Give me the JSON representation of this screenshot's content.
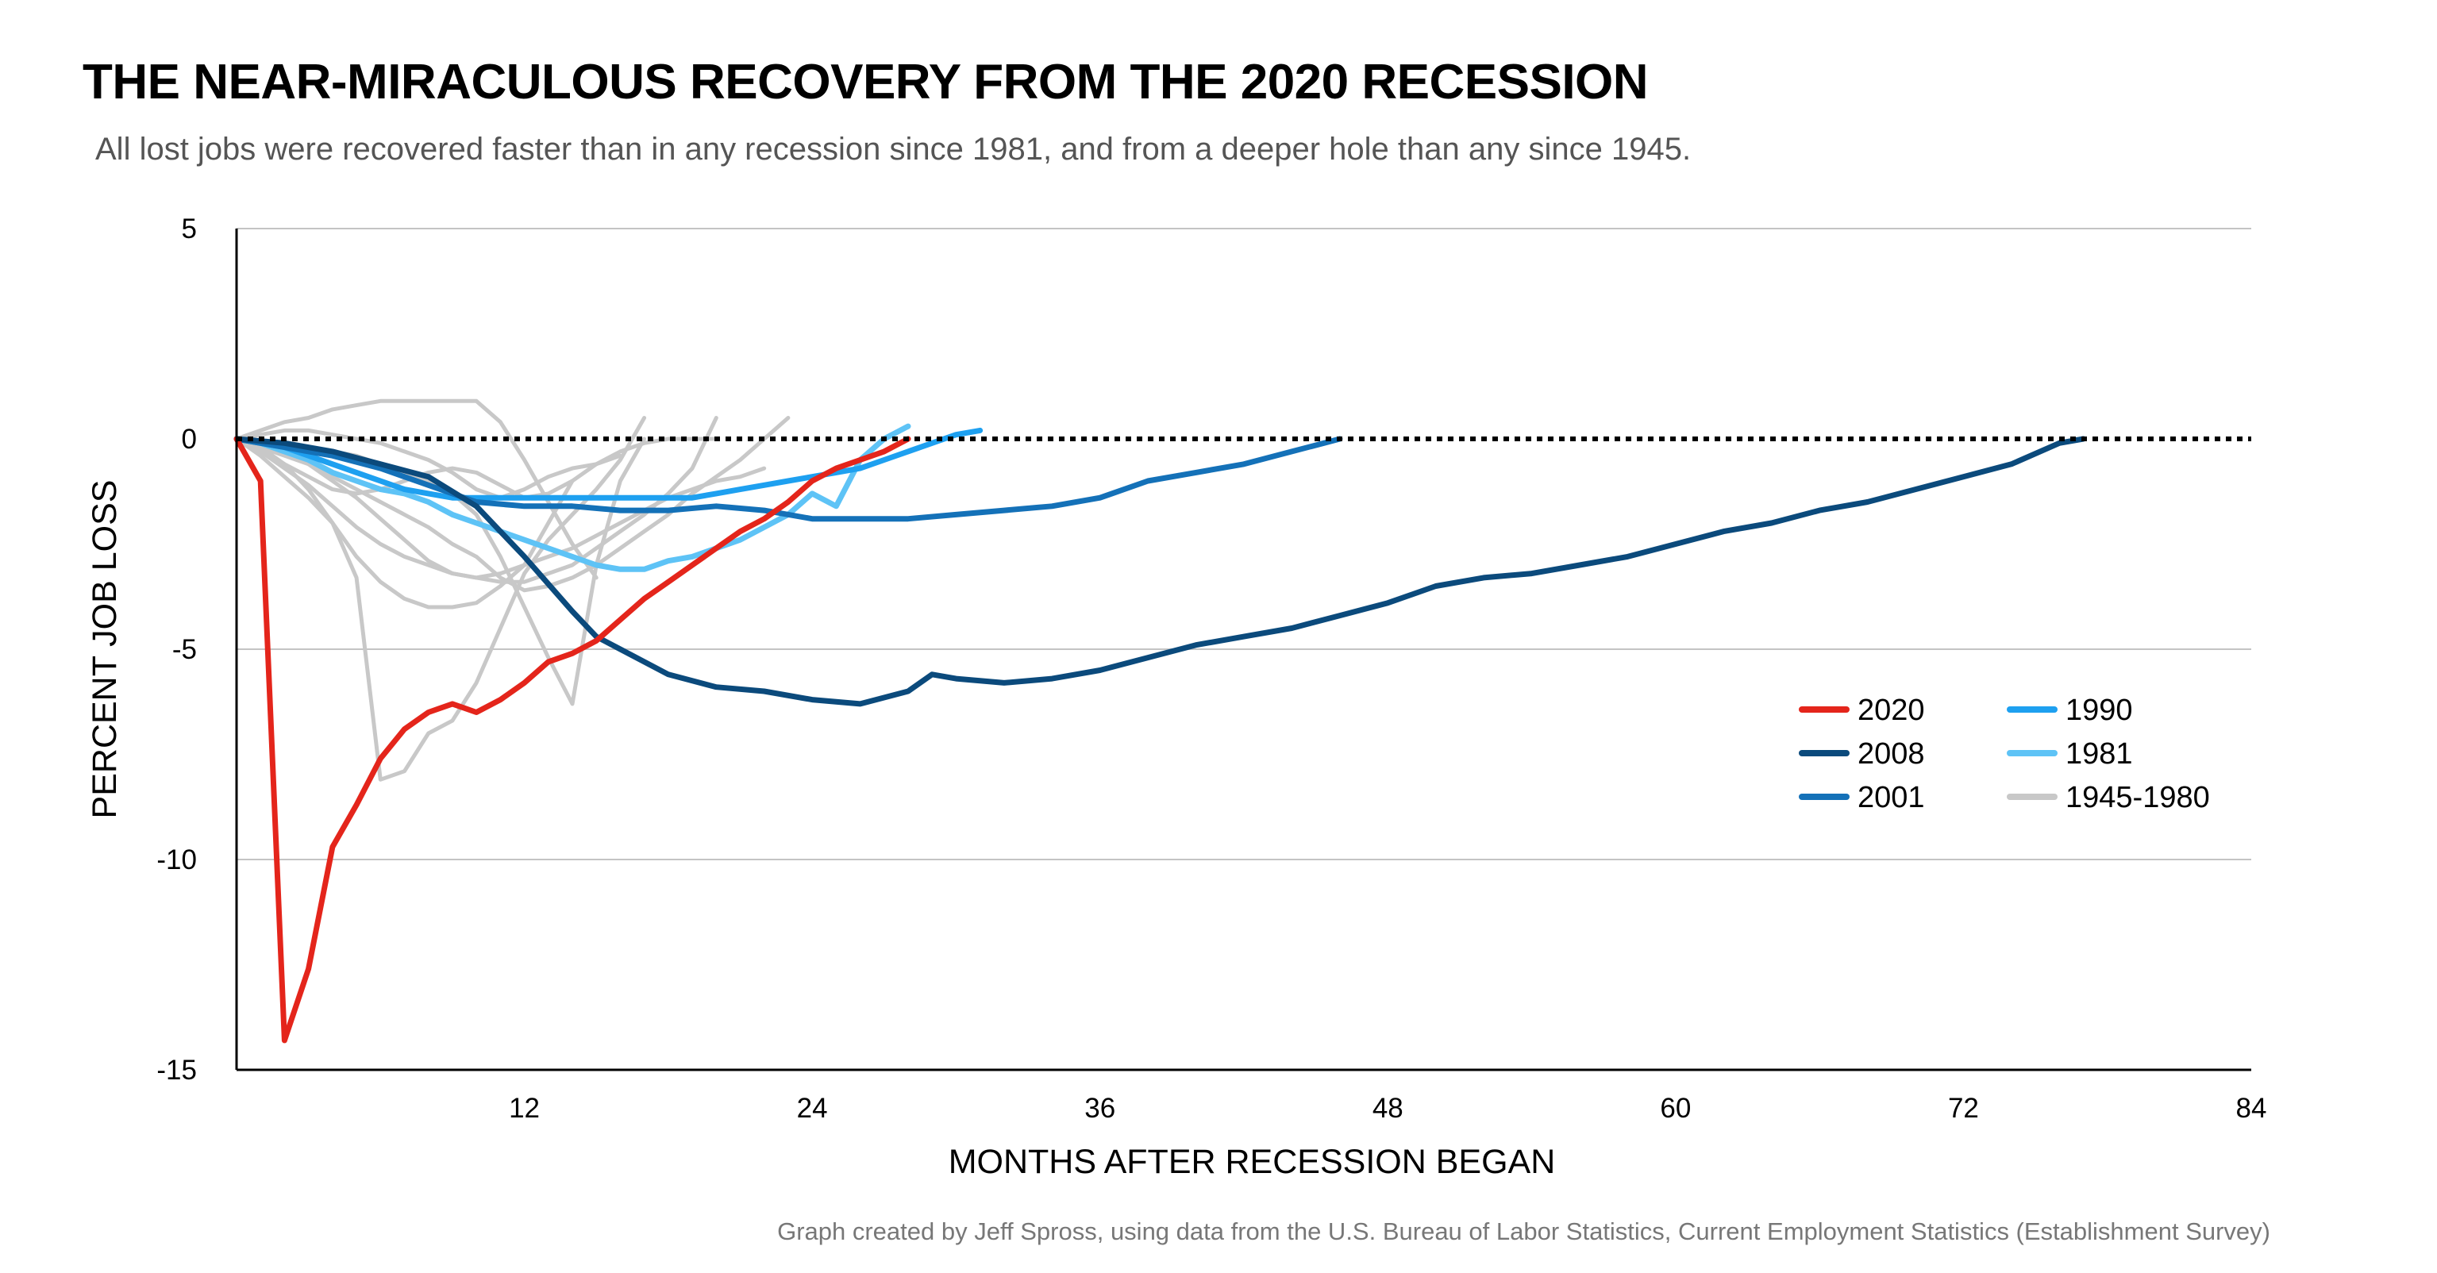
{
  "header": {
    "title": "THE NEAR-MIRACULOUS RECOVERY FROM THE 2020 RECESSION",
    "subtitle": "All lost jobs were recovered faster than in any recession since 1981, and from a deeper hole than any since 1945."
  },
  "footer": {
    "credit": "Graph created by Jeff Spross, using data from the U.S. Bureau of Labor Statistics, Current Employment Statistics (Establishment Survey)"
  },
  "chart_data": {
    "type": "line",
    "title": "THE NEAR-MIRACULOUS RECOVERY FROM THE 2020 RECESSION",
    "subtitle": "All lost jobs were recovered faster than in any recession since 1981, and from a deeper hole than any since 1945.",
    "xlabel": "MONTHS AFTER RECESSION BEGAN",
    "ylabel": "PERCENT JOB LOSS",
    "xlim": [
      0,
      84
    ],
    "ylim": [
      -15,
      5
    ],
    "xticks": [
      12,
      24,
      36,
      48,
      60,
      72,
      84
    ],
    "yticks": [
      5,
      0,
      -5,
      -10,
      -15
    ],
    "grid": "horizontal",
    "reference_line": {
      "y": 0,
      "style": "dotted"
    },
    "legend": {
      "placement": "right",
      "entries": [
        {
          "label": "2020",
          "color": "#e4251b"
        },
        {
          "label": "2008",
          "color": "#0b4a7c"
        },
        {
          "label": "2001",
          "color": "#1471b8"
        },
        {
          "label": "1990",
          "color": "#1ea0f0"
        },
        {
          "label": "1981",
          "color": "#5ec3f6"
        },
        {
          "label": "1945-1980",
          "color": "#c8c8c8"
        }
      ]
    },
    "series": [
      {
        "name": "1945-1980",
        "color": "#c8c8c8",
        "group": "background",
        "x": [
          0,
          1,
          2,
          3,
          4,
          5,
          6,
          7,
          8,
          9,
          10,
          11,
          12,
          13,
          14,
          15
        ],
        "y": [
          0,
          0.2,
          0.4,
          0.5,
          0.7,
          0.8,
          0.9,
          0.9,
          0.9,
          0.9,
          0.9,
          0.4,
          -0.5,
          -1.5,
          -2.5,
          -3.3
        ]
      },
      {
        "name": "1945-1980",
        "color": "#c8c8c8",
        "group": "background",
        "x": [
          0,
          1,
          2,
          3,
          4,
          5,
          6,
          7,
          8,
          9,
          10,
          11,
          12,
          13,
          14
        ],
        "y": [
          0,
          -0.2,
          -0.6,
          -1.2,
          -2.0,
          -2.8,
          -3.4,
          -3.8,
          -4.0,
          -4.0,
          -3.9,
          -3.5,
          -3.0,
          -2.0,
          -1.0
        ]
      },
      {
        "name": "1945-1980",
        "color": "#c8c8c8",
        "group": "background",
        "x": [
          0,
          1,
          2,
          3,
          4,
          5,
          6,
          7,
          8,
          9,
          10,
          11,
          12,
          13,
          14,
          15,
          16,
          17
        ],
        "y": [
          0,
          -0.4,
          -0.9,
          -1.4,
          -2.0,
          -3.3,
          -8.1,
          -7.9,
          -7.0,
          -6.7,
          -5.8,
          -4.5,
          -3.2,
          -2.4,
          -1.8,
          -1.2,
          -0.5,
          0.5
        ]
      },
      {
        "name": "1945-1980",
        "color": "#c8c8c8",
        "group": "background",
        "x": [
          0,
          1,
          2,
          3,
          4,
          5,
          6,
          7,
          8,
          9,
          10,
          11,
          12,
          13,
          14,
          15,
          16,
          17,
          18,
          19,
          20
        ],
        "y": [
          0,
          -0.1,
          -0.3,
          -0.6,
          -1.0,
          -1.4,
          -1.9,
          -2.4,
          -2.9,
          -3.2,
          -3.3,
          -3.4,
          -3.4,
          -3.2,
          -3.0,
          -2.6,
          -2.2,
          -1.8,
          -1.3,
          -0.7,
          0.5
        ]
      },
      {
        "name": "1945-1980",
        "color": "#c8c8c8",
        "group": "background",
        "x": [
          0,
          1,
          2,
          3,
          4,
          5,
          6,
          7,
          8,
          9,
          10,
          11,
          12,
          13,
          14,
          15,
          16,
          17,
          18,
          19,
          20,
          21,
          22,
          23
        ],
        "y": [
          0,
          -0.2,
          -0.4,
          -0.6,
          -0.9,
          -1.2,
          -1.5,
          -1.8,
          -2.1,
          -2.5,
          -2.8,
          -3.3,
          -3.6,
          -3.5,
          -3.3,
          -3.0,
          -2.6,
          -2.2,
          -1.8,
          -1.3,
          -0.9,
          -0.5,
          0,
          0.5
        ]
      },
      {
        "name": "1945-1980",
        "color": "#c8c8c8",
        "group": "background",
        "x": [
          0,
          1,
          2,
          3,
          4,
          5,
          6,
          7,
          8,
          9,
          10,
          11,
          12,
          13,
          14,
          15,
          16,
          17,
          18,
          19,
          20
        ],
        "y": [
          0,
          -0.3,
          -0.6,
          -0.9,
          -1.2,
          -1.3,
          -1.2,
          -1.0,
          -0.8,
          -0.7,
          -0.8,
          -1.1,
          -1.4,
          -1.3,
          -1.0,
          -0.6,
          -0.3,
          -0.1,
          0,
          0,
          0
        ]
      },
      {
        "name": "1945-1980",
        "color": "#c8c8c8",
        "group": "background",
        "x": [
          0,
          1,
          2,
          3,
          4,
          5,
          6,
          7,
          8,
          9,
          10,
          11,
          12,
          13,
          14,
          15,
          16,
          17
        ],
        "y": [
          0,
          -0.1,
          -0.1,
          -0.2,
          -0.3,
          -0.4,
          -0.6,
          -0.8,
          -1.0,
          -1.3,
          -1.8,
          -2.8,
          -4.0,
          -5.2,
          -6.3,
          -3.0,
          -1.0,
          0
        ]
      },
      {
        "name": "1945-1980",
        "color": "#c8c8c8",
        "group": "background",
        "x": [
          0,
          1,
          2,
          3,
          4,
          5,
          6,
          7,
          8,
          9,
          10,
          11,
          12,
          13,
          14,
          15,
          16
        ],
        "y": [
          0,
          0.1,
          0.2,
          0.2,
          0.1,
          0,
          -0.1,
          -0.3,
          -0.5,
          -0.8,
          -1.2,
          -1.4,
          -1.2,
          -0.9,
          -0.7,
          -0.6,
          -0.4
        ]
      },
      {
        "name": "1945-1980",
        "color": "#c8c8c8",
        "group": "background",
        "x": [
          0,
          1,
          2,
          3,
          4,
          5,
          6,
          7,
          8,
          9,
          10,
          11,
          12,
          13,
          14,
          15,
          16,
          17,
          18,
          19,
          20,
          21,
          22
        ],
        "y": [
          0,
          -0.3,
          -0.7,
          -1.1,
          -1.6,
          -2.1,
          -2.5,
          -2.8,
          -3.0,
          -3.2,
          -3.3,
          -3.2,
          -3.0,
          -2.8,
          -2.6,
          -2.3,
          -2.0,
          -1.7,
          -1.4,
          -1.2,
          -1.0,
          -0.9,
          -0.7
        ]
      },
      {
        "name": "1981",
        "color": "#5ec3f6",
        "group": "highlight",
        "x": [
          0,
          1,
          2,
          3,
          4,
          5,
          6,
          7,
          8,
          9,
          10,
          11,
          12,
          13,
          14,
          15,
          16,
          17,
          18,
          19,
          20,
          21,
          22,
          23,
          24,
          25,
          26,
          27,
          28
        ],
        "y": [
          0,
          -0.1,
          -0.3,
          -0.5,
          -0.8,
          -1.0,
          -1.2,
          -1.3,
          -1.5,
          -1.8,
          -2.0,
          -2.2,
          -2.4,
          -2.6,
          -2.8,
          -3.0,
          -3.1,
          -3.1,
          -2.9,
          -2.8,
          -2.6,
          -2.4,
          -2.1,
          -1.8,
          -1.3,
          -1.6,
          -0.5,
          0,
          0.3
        ]
      },
      {
        "name": "1990",
        "color": "#1ea0f0",
        "group": "highlight",
        "x": [
          0,
          1,
          2,
          3,
          4,
          5,
          6,
          7,
          8,
          9,
          10,
          11,
          12,
          13,
          14,
          15,
          16,
          17,
          18,
          19,
          20,
          21,
          22,
          23,
          24,
          25,
          26,
          27,
          28,
          29,
          30,
          31
        ],
        "y": [
          0,
          -0.1,
          -0.2,
          -0.4,
          -0.6,
          -0.8,
          -1.0,
          -1.2,
          -1.3,
          -1.4,
          -1.4,
          -1.4,
          -1.4,
          -1.4,
          -1.4,
          -1.4,
          -1.4,
          -1.4,
          -1.4,
          -1.4,
          -1.3,
          -1.2,
          -1.1,
          -1.0,
          -0.9,
          -0.8,
          -0.7,
          -0.5,
          -0.3,
          -0.1,
          0.1,
          0.2
        ]
      },
      {
        "name": "2001",
        "color": "#1471b8",
        "group": "highlight",
        "x": [
          0,
          2,
          4,
          6,
          8,
          10,
          12,
          14,
          16,
          18,
          20,
          22,
          24,
          26,
          28,
          30,
          32,
          34,
          36,
          38,
          40,
          42,
          44,
          46
        ],
        "y": [
          0,
          -0.2,
          -0.4,
          -0.7,
          -1.1,
          -1.5,
          -1.6,
          -1.6,
          -1.7,
          -1.7,
          -1.6,
          -1.7,
          -1.9,
          -1.9,
          -1.9,
          -1.8,
          -1.7,
          -1.6,
          -1.4,
          -1.0,
          -0.8,
          -0.6,
          -0.3,
          0
        ]
      },
      {
        "name": "2008",
        "color": "#0b4a7c",
        "group": "highlight",
        "x": [
          0,
          2,
          4,
          6,
          8,
          10,
          12,
          14,
          15,
          16,
          18,
          20,
          22,
          24,
          26,
          28,
          29,
          30,
          32,
          34,
          36,
          38,
          40,
          42,
          44,
          46,
          48,
          50,
          52,
          54,
          56,
          58,
          60,
          62,
          64,
          66,
          68,
          70,
          72,
          74,
          76,
          77
        ],
        "y": [
          0,
          -0.1,
          -0.3,
          -0.6,
          -0.9,
          -1.6,
          -2.8,
          -4.1,
          -4.7,
          -5.0,
          -5.6,
          -5.9,
          -6.0,
          -6.2,
          -6.3,
          -6.0,
          -5.6,
          -5.7,
          -5.8,
          -5.7,
          -5.5,
          -5.2,
          -4.9,
          -4.7,
          -4.5,
          -4.2,
          -3.9,
          -3.5,
          -3.3,
          -3.2,
          -3.0,
          -2.8,
          -2.5,
          -2.2,
          -2.0,
          -1.7,
          -1.5,
          -1.2,
          -0.9,
          -0.6,
          -0.1,
          0
        ]
      },
      {
        "name": "2020",
        "color": "#e4251b",
        "group": "highlight",
        "x": [
          0,
          1,
          2,
          3,
          4,
          5,
          6,
          7,
          8,
          9,
          10,
          11,
          12,
          13,
          14,
          15,
          16,
          17,
          18,
          19,
          20,
          21,
          22,
          23,
          24,
          25,
          26,
          27,
          28
        ],
        "y": [
          0,
          -1.0,
          -14.3,
          -12.6,
          -9.7,
          -8.7,
          -7.6,
          -6.9,
          -6.5,
          -6.3,
          -6.5,
          -6.2,
          -5.8,
          -5.3,
          -5.1,
          -4.8,
          -4.3,
          -3.8,
          -3.4,
          -3.0,
          -2.6,
          -2.2,
          -1.9,
          -1.5,
          -1.0,
          -0.7,
          -0.5,
          -0.3,
          0
        ]
      }
    ]
  }
}
